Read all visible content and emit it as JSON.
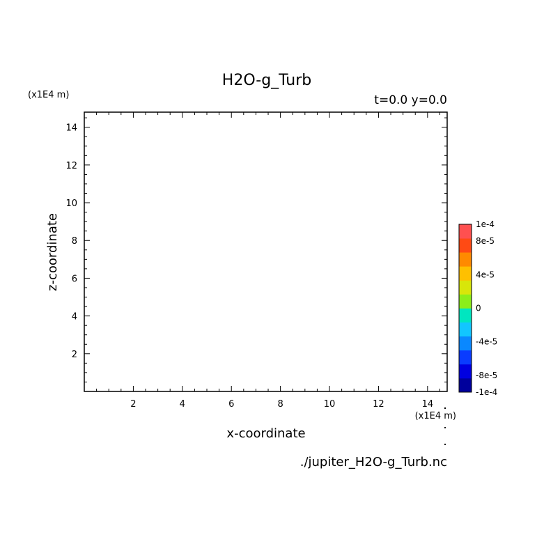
{
  "chart_data": {
    "type": "heatmap",
    "title": "H2O-g_Turb",
    "time_label": "t=0.0 y=0.0",
    "xlabel": "x-coordinate",
    "ylabel": "z-coordinate",
    "x_unit_label": "(x1E4 m)",
    "y_unit_label": "(x1E4 m)",
    "source_file": "./jupiter_H2O-g_Turb.nc",
    "xlim": [
      0,
      14.8
    ],
    "ylim": [
      0,
      14.8
    ],
    "x_ticks": [
      2,
      4,
      6,
      8,
      10,
      12,
      14
    ],
    "y_ticks": [
      2,
      4,
      6,
      8,
      10,
      12,
      14
    ],
    "x_minor_step": 0.5,
    "y_minor_step": 0.5,
    "values": [],
    "colorbar": {
      "min": -0.0001,
      "max": 0.0001,
      "labels": [
        {
          "value": 0.0001,
          "text": "1e-4"
        },
        {
          "value": 8e-05,
          "text": "8e-5"
        },
        {
          "value": 4e-05,
          "text": "4e-5"
        },
        {
          "value": 0,
          "text": "0"
        },
        {
          "value": -4e-05,
          "text": "-4e-5"
        },
        {
          "value": -8e-05,
          "text": "-8e-5"
        },
        {
          "value": -0.0001,
          "text": "-1e-4"
        }
      ],
      "colors": [
        "#00009c",
        "#0000e0",
        "#0a3cff",
        "#0a88ff",
        "#12c6ff",
        "#00e6c0",
        "#8cee1a",
        "#d8e60a",
        "#ffc000",
        "#ff8a00",
        "#ff4a14",
        "#ff5050"
      ]
    }
  }
}
